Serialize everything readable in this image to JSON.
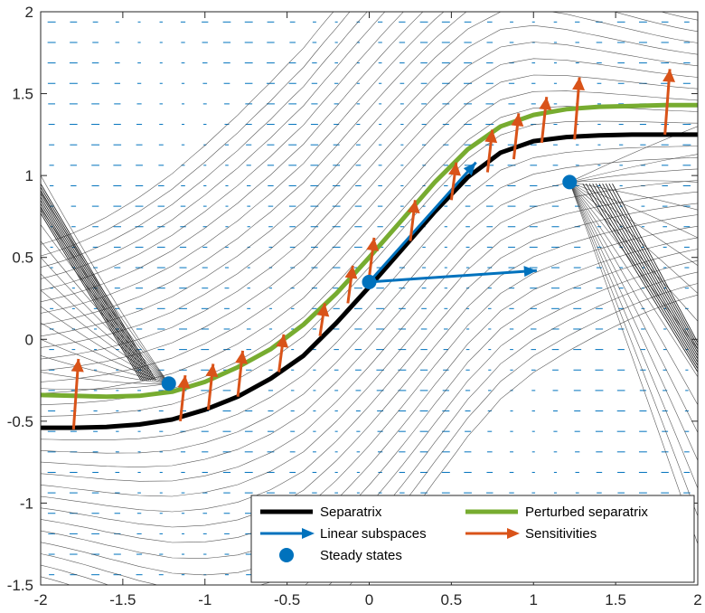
{
  "chart_data": {
    "type": "line",
    "title": "",
    "xlabel": "",
    "ylabel": "",
    "xlim": [
      -2,
      2
    ],
    "ylim": [
      -1.5,
      2
    ],
    "xticks": [
      "-2",
      "-1.5",
      "-1",
      "-0.5",
      "0",
      "0.5",
      "1",
      "1.5",
      "2"
    ],
    "yticks": [
      "-1.5",
      "-1",
      "-0.5",
      "0",
      "0.5",
      "1",
      "1.5",
      "2"
    ],
    "legend_position": "bottom-right",
    "colors": {
      "separatrix": "#000000",
      "perturbed": "#77ac30",
      "linear": "#0072bd",
      "sensitivity": "#d95319",
      "steady": "#0072bd",
      "streamline": "#3c3c3c",
      "quiver": "#0072bd"
    },
    "series": [
      {
        "name": "Separatrix",
        "x": [
          -2,
          -1.8,
          -1.6,
          -1.4,
          -1.2,
          -1.0,
          -0.8,
          -0.6,
          -0.4,
          -0.2,
          0.0,
          0.2,
          0.4,
          0.6,
          0.8,
          1.0,
          1.2,
          1.4,
          1.6,
          1.8,
          2.0
        ],
        "y": [
          -0.54,
          -0.54,
          -0.535,
          -0.52,
          -0.49,
          -0.43,
          -0.35,
          -0.24,
          -0.1,
          0.1,
          0.32,
          0.55,
          0.78,
          0.99,
          1.14,
          1.21,
          1.235,
          1.245,
          1.25,
          1.25,
          1.25
        ]
      },
      {
        "name": "Perturbed separatrix",
        "x": [
          -2,
          -1.8,
          -1.6,
          -1.4,
          -1.2,
          -1.0,
          -0.8,
          -0.6,
          -0.4,
          -0.2,
          0.0,
          0.2,
          0.4,
          0.6,
          0.8,
          1.0,
          1.2,
          1.4,
          1.6,
          1.8,
          2.0
        ],
        "y": [
          -0.34,
          -0.345,
          -0.35,
          -0.345,
          -0.32,
          -0.26,
          -0.17,
          -0.06,
          0.09,
          0.28,
          0.5,
          0.73,
          0.96,
          1.16,
          1.3,
          1.37,
          1.405,
          1.42,
          1.425,
          1.43,
          1.43
        ]
      }
    ],
    "linear_subspaces": [
      {
        "from": [
          0.0,
          0.35
        ],
        "to": [
          0.65,
          1.08
        ]
      },
      {
        "from": [
          0.0,
          0.35
        ],
        "to": [
          1.02,
          0.42
        ]
      }
    ],
    "sensitivities": [
      {
        "x": -1.8,
        "y0": -0.55,
        "y1": -0.12
      },
      {
        "x": -1.15,
        "y0": -0.5,
        "y1": -0.22
      },
      {
        "x": -0.98,
        "y0": -0.43,
        "y1": -0.15
      },
      {
        "x": -0.8,
        "y0": -0.35,
        "y1": -0.07
      },
      {
        "x": -0.55,
        "y0": -0.2,
        "y1": 0.03
      },
      {
        "x": -0.3,
        "y0": 0.02,
        "y1": 0.22
      },
      {
        "x": -0.13,
        "y0": 0.22,
        "y1": 0.45
      },
      {
        "x": 0.0,
        "y0": 0.38,
        "y1": 0.62
      },
      {
        "x": 0.25,
        "y0": 0.6,
        "y1": 0.85
      },
      {
        "x": 0.5,
        "y0": 0.85,
        "y1": 1.08
      },
      {
        "x": 0.72,
        "y0": 1.02,
        "y1": 1.28
      },
      {
        "x": 0.88,
        "y0": 1.1,
        "y1": 1.38
      },
      {
        "x": 1.05,
        "y0": 1.2,
        "y1": 1.48
      },
      {
        "x": 1.25,
        "y0": 1.22,
        "y1": 1.6
      },
      {
        "x": 1.8,
        "y0": 1.25,
        "y1": 1.65
      }
    ],
    "steady_states": [
      {
        "x": -1.22,
        "y": -0.27
      },
      {
        "x": 0.0,
        "y": 0.35
      },
      {
        "x": 1.22,
        "y": 0.96
      }
    ],
    "legend": [
      {
        "label": "Separatrix",
        "kind": "line",
        "color_key": "separatrix"
      },
      {
        "label": "Perturbed separatrix",
        "kind": "line",
        "color_key": "perturbed"
      },
      {
        "label": "Linear subspaces",
        "kind": "arrow",
        "color_key": "linear"
      },
      {
        "label": "Sensitivities",
        "kind": "arrow",
        "color_key": "sensitivity"
      },
      {
        "label": "Steady states",
        "kind": "marker",
        "color_key": "steady"
      }
    ]
  }
}
